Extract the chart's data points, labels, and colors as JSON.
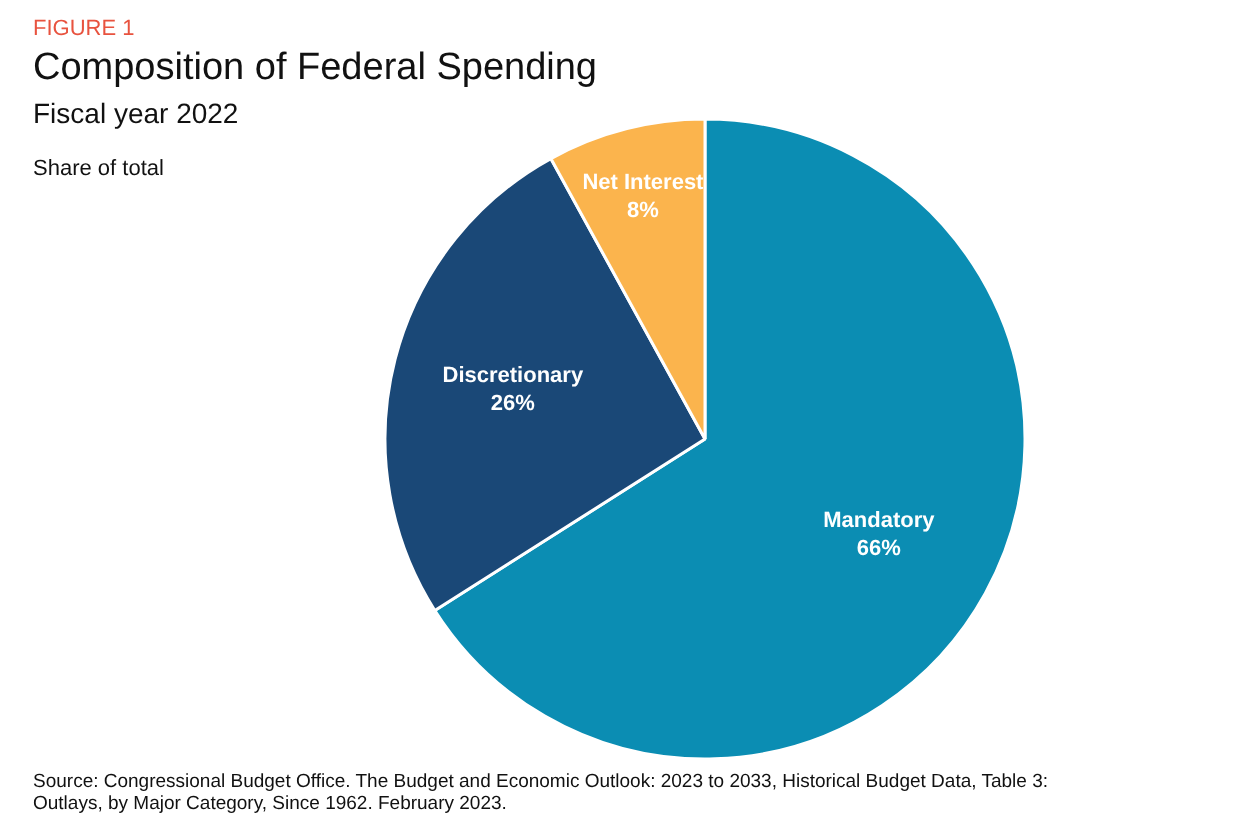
{
  "chart_data": {
    "type": "pie",
    "title": "Composition of Federal Spending",
    "subtitle": "Fiscal year 2022",
    "annotations": [
      "FIGURE 1",
      "Share of total",
      "Source: Congressional Budget Office. The Budget and Economic Outlook: 2023 to 2033, Historical Budget Data, Table 3: Outlays, by Major Category, Since 1962. February 2023."
    ],
    "categories": [
      "Mandatory",
      "Discretionary",
      "Net Interest"
    ],
    "values": [
      66,
      26,
      8
    ],
    "value_labels": [
      "66%",
      "26%",
      "8%"
    ],
    "colors": [
      "#0b8db3",
      "#1a4877",
      "#fbb44d"
    ]
  }
}
